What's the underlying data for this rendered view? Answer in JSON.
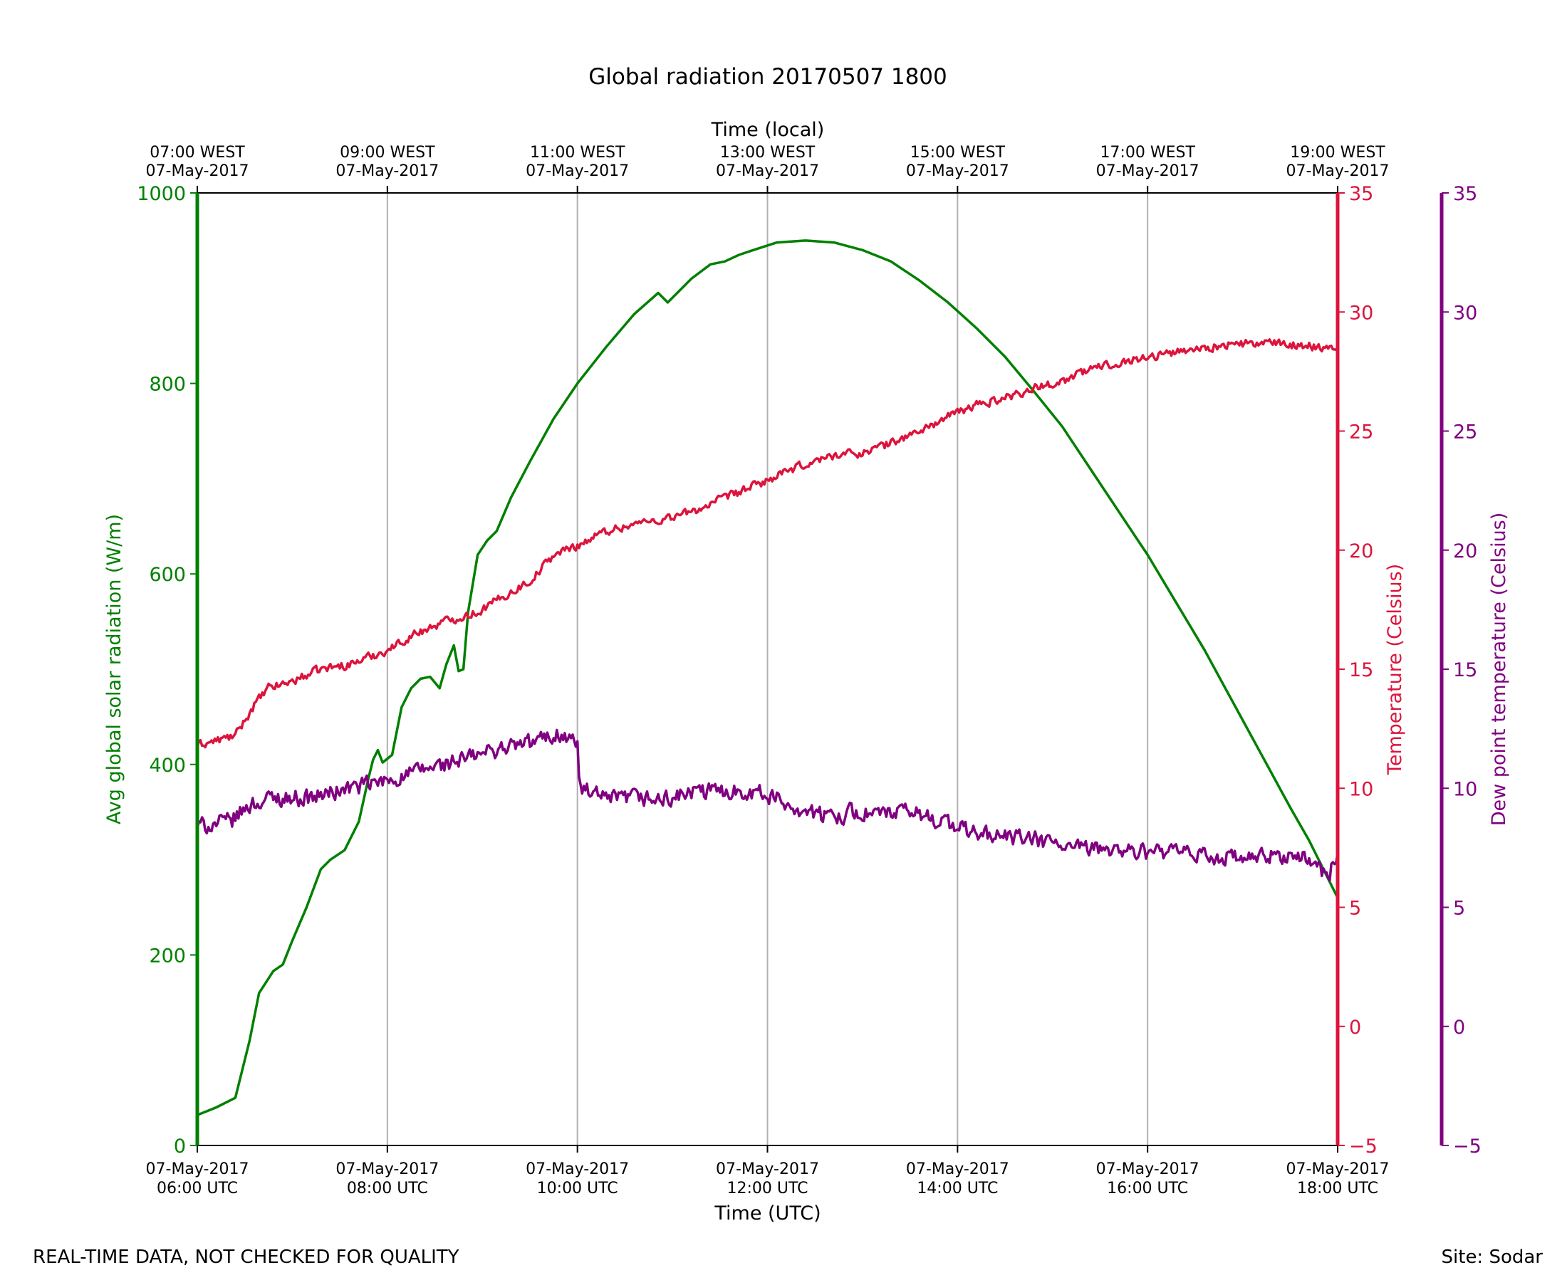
{
  "chart_data": {
    "type": "line",
    "title": "Global radiation 20170507 1800",
    "xlabel_bottom": "Time (UTC)",
    "xlabel_top": "Time (local)",
    "x_range_utc_hours": [
      6,
      18
    ],
    "bottom_ticks": [
      {
        "hour": 6,
        "date": "07-May-2017",
        "time": "06:00 UTC"
      },
      {
        "hour": 8,
        "date": "07-May-2017",
        "time": "08:00 UTC"
      },
      {
        "hour": 10,
        "date": "07-May-2017",
        "time": "10:00 UTC"
      },
      {
        "hour": 12,
        "date": "07-May-2017",
        "time": "12:00 UTC"
      },
      {
        "hour": 14,
        "date": "07-May-2017",
        "time": "14:00 UTC"
      },
      {
        "hour": 16,
        "date": "07-May-2017",
        "time": "16:00 UTC"
      },
      {
        "hour": 18,
        "date": "07-May-2017",
        "time": "18:00 UTC"
      }
    ],
    "top_ticks": [
      {
        "hour": 6,
        "time": "07:00 WEST",
        "date": "07-May-2017"
      },
      {
        "hour": 8,
        "time": "09:00 WEST",
        "date": "07-May-2017"
      },
      {
        "hour": 10,
        "time": "11:00 WEST",
        "date": "07-May-2017"
      },
      {
        "hour": 12,
        "time": "13:00 WEST",
        "date": "07-May-2017"
      },
      {
        "hour": 14,
        "time": "15:00 WEST",
        "date": "07-May-2017"
      },
      {
        "hour": 16,
        "time": "17:00 WEST",
        "date": "07-May-2017"
      },
      {
        "hour": 18,
        "time": "19:00 WEST",
        "date": "07-May-2017"
      }
    ],
    "vertical_grid": true,
    "axes": {
      "radiation": {
        "label": "Avg global solar radiation (W/m)",
        "color": "#008000",
        "ylim": [
          0,
          1000
        ],
        "ticks": [
          "0",
          "200",
          "400",
          "600",
          "800",
          "1000"
        ],
        "side": "left"
      },
      "temperature": {
        "label": "Temperature (Celsius)",
        "color": "#dc143c",
        "ylim": [
          -5,
          35
        ],
        "ticks": [
          "−5",
          "0",
          "5",
          "10",
          "15",
          "20",
          "25",
          "30",
          "35"
        ],
        "side": "right"
      },
      "dewpoint": {
        "label": "Dew point temperature (Celsius)",
        "color": "#800080",
        "ylim": [
          -5,
          35
        ],
        "ticks": [
          "−5",
          "0",
          "5",
          "10",
          "15",
          "20",
          "25",
          "30",
          "35"
        ],
        "side": "right-outer"
      }
    },
    "series": [
      {
        "axis": "radiation",
        "color": "#008000",
        "points": [
          [
            6.0,
            32
          ],
          [
            6.2,
            40
          ],
          [
            6.4,
            50
          ],
          [
            6.55,
            110
          ],
          [
            6.65,
            160
          ],
          [
            6.8,
            183
          ],
          [
            6.9,
            190
          ],
          [
            7.0,
            215
          ],
          [
            7.15,
            250
          ],
          [
            7.3,
            290
          ],
          [
            7.4,
            300
          ],
          [
            7.55,
            310
          ],
          [
            7.7,
            340
          ],
          [
            7.8,
            385
          ],
          [
            7.85,
            405
          ],
          [
            7.9,
            415
          ],
          [
            7.95,
            402
          ],
          [
            8.05,
            410
          ],
          [
            8.15,
            460
          ],
          [
            8.25,
            480
          ],
          [
            8.35,
            490
          ],
          [
            8.45,
            492
          ],
          [
            8.55,
            480
          ],
          [
            8.62,
            505
          ],
          [
            8.7,
            525
          ],
          [
            8.75,
            498
          ],
          [
            8.8,
            500
          ],
          [
            8.85,
            560
          ],
          [
            8.95,
            620
          ],
          [
            9.05,
            635
          ],
          [
            9.15,
            645
          ],
          [
            9.3,
            680
          ],
          [
            9.5,
            718
          ],
          [
            9.75,
            763
          ],
          [
            10.0,
            800
          ],
          [
            10.3,
            838
          ],
          [
            10.6,
            873
          ],
          [
            10.85,
            895
          ],
          [
            10.95,
            885
          ],
          [
            11.05,
            895
          ],
          [
            11.2,
            910
          ],
          [
            11.4,
            925
          ],
          [
            11.55,
            928
          ],
          [
            11.7,
            935
          ],
          [
            11.85,
            940
          ],
          [
            12.1,
            948
          ],
          [
            12.4,
            950
          ],
          [
            12.7,
            948
          ],
          [
            13.0,
            940
          ],
          [
            13.3,
            928
          ],
          [
            13.6,
            908
          ],
          [
            13.9,
            885
          ],
          [
            14.2,
            858
          ],
          [
            14.5,
            828
          ],
          [
            14.8,
            792
          ],
          [
            15.1,
            755
          ],
          [
            15.4,
            710
          ],
          [
            15.7,
            665
          ],
          [
            16.0,
            620
          ],
          [
            16.3,
            570
          ],
          [
            16.6,
            520
          ],
          [
            16.9,
            465
          ],
          [
            17.2,
            410
          ],
          [
            17.5,
            355
          ],
          [
            17.7,
            320
          ],
          [
            17.85,
            290
          ],
          [
            18.0,
            260
          ]
        ]
      },
      {
        "axis": "temperature",
        "color": "#dc143c",
        "noise": 0.25,
        "points": [
          [
            6.0,
            11.8
          ],
          [
            6.4,
            12.2
          ],
          [
            6.6,
            13.5
          ],
          [
            6.75,
            14.2
          ],
          [
            7.0,
            14.5
          ],
          [
            7.3,
            15.0
          ],
          [
            7.6,
            15.2
          ],
          [
            8.0,
            15.8
          ],
          [
            8.3,
            16.5
          ],
          [
            8.6,
            17.0
          ],
          [
            8.95,
            17.4
          ],
          [
            9.2,
            18.0
          ],
          [
            9.5,
            18.7
          ],
          [
            9.75,
            19.8
          ],
          [
            10.0,
            20.2
          ],
          [
            10.3,
            20.8
          ],
          [
            10.6,
            21.1
          ],
          [
            10.9,
            21.3
          ],
          [
            11.2,
            21.6
          ],
          [
            11.5,
            22.1
          ],
          [
            11.8,
            22.6
          ],
          [
            12.1,
            23.1
          ],
          [
            12.4,
            23.6
          ],
          [
            12.7,
            24.0
          ],
          [
            13.0,
            24.1
          ],
          [
            13.3,
            24.5
          ],
          [
            13.6,
            25.0
          ],
          [
            13.9,
            25.6
          ],
          [
            14.2,
            26.1
          ],
          [
            14.5,
            26.4
          ],
          [
            14.8,
            26.8
          ],
          [
            15.1,
            27.1
          ],
          [
            15.4,
            27.6
          ],
          [
            15.7,
            27.9
          ],
          [
            16.0,
            28.1
          ],
          [
            16.4,
            28.4
          ],
          [
            16.8,
            28.6
          ],
          [
            17.2,
            28.7
          ],
          [
            17.6,
            28.6
          ],
          [
            18.0,
            28.5
          ]
        ]
      },
      {
        "axis": "dewpoint",
        "color": "#800080",
        "noise": 0.5,
        "points": [
          [
            6.0,
            8.4
          ],
          [
            6.35,
            8.6
          ],
          [
            6.55,
            9.3
          ],
          [
            6.8,
            9.6
          ],
          [
            7.2,
            9.6
          ],
          [
            7.6,
            10.0
          ],
          [
            8.0,
            10.3
          ],
          [
            8.4,
            10.8
          ],
          [
            8.8,
            11.2
          ],
          [
            9.2,
            11.7
          ],
          [
            9.5,
            11.9
          ],
          [
            9.8,
            12.3
          ],
          [
            10.0,
            11.9
          ],
          [
            10.02,
            10.0
          ],
          [
            10.3,
            9.5
          ],
          [
            10.6,
            9.6
          ],
          [
            10.9,
            9.5
          ],
          [
            11.2,
            9.8
          ],
          [
            11.5,
            9.9
          ],
          [
            11.8,
            9.9
          ],
          [
            12.0,
            9.7
          ],
          [
            12.3,
            9.2
          ],
          [
            12.6,
            8.8
          ],
          [
            12.9,
            9.0
          ],
          [
            13.2,
            8.9
          ],
          [
            13.5,
            9.0
          ],
          [
            13.8,
            8.7
          ],
          [
            14.1,
            8.2
          ],
          [
            14.4,
            8.0
          ],
          [
            14.7,
            7.9
          ],
          [
            15.0,
            7.7
          ],
          [
            15.3,
            7.4
          ],
          [
            15.6,
            7.5
          ],
          [
            15.9,
            7.3
          ],
          [
            16.2,
            7.3
          ],
          [
            16.5,
            7.2
          ],
          [
            16.8,
            7.1
          ],
          [
            17.1,
            7.0
          ],
          [
            17.4,
            7.2
          ],
          [
            17.7,
            7.0
          ],
          [
            17.9,
            6.3
          ],
          [
            18.0,
            7.3
          ]
        ]
      }
    ]
  },
  "footer": {
    "disclaimer": "REAL-TIME DATA, NOT CHECKED FOR QUALITY",
    "site": "Site: Sodar"
  }
}
